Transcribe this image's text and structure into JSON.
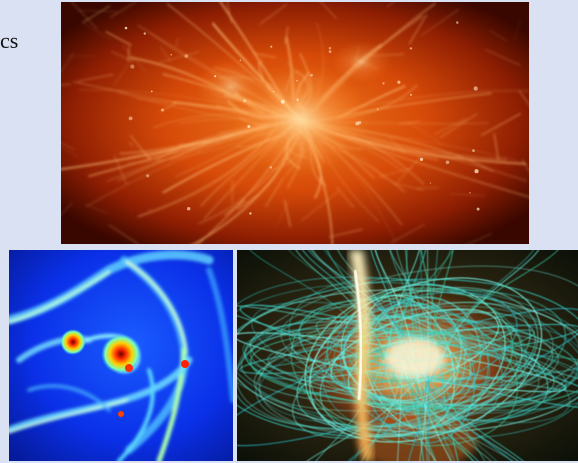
{
  "slide": {
    "partial_text": "cs",
    "colors": {
      "background": "#d9e1f2",
      "text": "#111111"
    }
  },
  "images": {
    "top": {
      "name": "cosmic-web-simulation-image"
    },
    "bottom_left": {
      "name": "protoplanetary-disk-simulation-image"
    },
    "bottom_right": {
      "name": "magnetic-field-lines-simulation-image"
    }
  }
}
